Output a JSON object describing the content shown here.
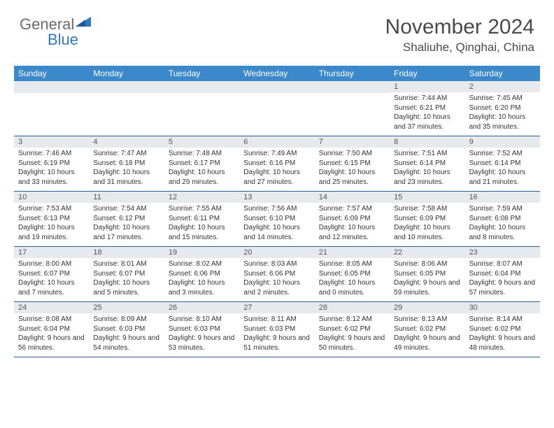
{
  "logo": {
    "general": "General",
    "blue": "Blue"
  },
  "title": "November 2024",
  "location": "Shaliuhe, Qinghai, China",
  "colors": {
    "header_bg": "#3b89ca",
    "daynum_bg": "#e7eaec",
    "border": "#2f5f8f",
    "logo_gray": "#6b6b6b",
    "logo_blue": "#2f78c2"
  },
  "day_names": [
    "Sunday",
    "Monday",
    "Tuesday",
    "Wednesday",
    "Thursday",
    "Friday",
    "Saturday"
  ],
  "weeks": [
    [
      {
        "n": "",
        "lines": []
      },
      {
        "n": "",
        "lines": []
      },
      {
        "n": "",
        "lines": []
      },
      {
        "n": "",
        "lines": []
      },
      {
        "n": "",
        "lines": []
      },
      {
        "n": "1",
        "lines": [
          "Sunrise: 7:44 AM",
          "Sunset: 6:21 PM",
          "Daylight: 10 hours and 37 minutes."
        ]
      },
      {
        "n": "2",
        "lines": [
          "Sunrise: 7:45 AM",
          "Sunset: 6:20 PM",
          "Daylight: 10 hours and 35 minutes."
        ]
      }
    ],
    [
      {
        "n": "3",
        "lines": [
          "Sunrise: 7:46 AM",
          "Sunset: 6:19 PM",
          "Daylight: 10 hours and 33 minutes."
        ]
      },
      {
        "n": "4",
        "lines": [
          "Sunrise: 7:47 AM",
          "Sunset: 6:18 PM",
          "Daylight: 10 hours and 31 minutes."
        ]
      },
      {
        "n": "5",
        "lines": [
          "Sunrise: 7:48 AM",
          "Sunset: 6:17 PM",
          "Daylight: 10 hours and 29 minutes."
        ]
      },
      {
        "n": "6",
        "lines": [
          "Sunrise: 7:49 AM",
          "Sunset: 6:16 PM",
          "Daylight: 10 hours and 27 minutes."
        ]
      },
      {
        "n": "7",
        "lines": [
          "Sunrise: 7:50 AM",
          "Sunset: 6:15 PM",
          "Daylight: 10 hours and 25 minutes."
        ]
      },
      {
        "n": "8",
        "lines": [
          "Sunrise: 7:51 AM",
          "Sunset: 6:14 PM",
          "Daylight: 10 hours and 23 minutes."
        ]
      },
      {
        "n": "9",
        "lines": [
          "Sunrise: 7:52 AM",
          "Sunset: 6:14 PM",
          "Daylight: 10 hours and 21 minutes."
        ]
      }
    ],
    [
      {
        "n": "10",
        "lines": [
          "Sunrise: 7:53 AM",
          "Sunset: 6:13 PM",
          "Daylight: 10 hours and 19 minutes."
        ]
      },
      {
        "n": "11",
        "lines": [
          "Sunrise: 7:54 AM",
          "Sunset: 6:12 PM",
          "Daylight: 10 hours and 17 minutes."
        ]
      },
      {
        "n": "12",
        "lines": [
          "Sunrise: 7:55 AM",
          "Sunset: 6:11 PM",
          "Daylight: 10 hours and 15 minutes."
        ]
      },
      {
        "n": "13",
        "lines": [
          "Sunrise: 7:56 AM",
          "Sunset: 6:10 PM",
          "Daylight: 10 hours and 14 minutes."
        ]
      },
      {
        "n": "14",
        "lines": [
          "Sunrise: 7:57 AM",
          "Sunset: 6:09 PM",
          "Daylight: 10 hours and 12 minutes."
        ]
      },
      {
        "n": "15",
        "lines": [
          "Sunrise: 7:58 AM",
          "Sunset: 6:09 PM",
          "Daylight: 10 hours and 10 minutes."
        ]
      },
      {
        "n": "16",
        "lines": [
          "Sunrise: 7:59 AM",
          "Sunset: 6:08 PM",
          "Daylight: 10 hours and 8 minutes."
        ]
      }
    ],
    [
      {
        "n": "17",
        "lines": [
          "Sunrise: 8:00 AM",
          "Sunset: 6:07 PM",
          "Daylight: 10 hours and 7 minutes."
        ]
      },
      {
        "n": "18",
        "lines": [
          "Sunrise: 8:01 AM",
          "Sunset: 6:07 PM",
          "Daylight: 10 hours and 5 minutes."
        ]
      },
      {
        "n": "19",
        "lines": [
          "Sunrise: 8:02 AM",
          "Sunset: 6:06 PM",
          "Daylight: 10 hours and 3 minutes."
        ]
      },
      {
        "n": "20",
        "lines": [
          "Sunrise: 8:03 AM",
          "Sunset: 6:06 PM",
          "Daylight: 10 hours and 2 minutes."
        ]
      },
      {
        "n": "21",
        "lines": [
          "Sunrise: 8:05 AM",
          "Sunset: 6:05 PM",
          "Daylight: 10 hours and 0 minutes."
        ]
      },
      {
        "n": "22",
        "lines": [
          "Sunrise: 8:06 AM",
          "Sunset: 6:05 PM",
          "Daylight: 9 hours and 59 minutes."
        ]
      },
      {
        "n": "23",
        "lines": [
          "Sunrise: 8:07 AM",
          "Sunset: 6:04 PM",
          "Daylight: 9 hours and 57 minutes."
        ]
      }
    ],
    [
      {
        "n": "24",
        "lines": [
          "Sunrise: 8:08 AM",
          "Sunset: 6:04 PM",
          "Daylight: 9 hours and 56 minutes."
        ]
      },
      {
        "n": "25",
        "lines": [
          "Sunrise: 8:09 AM",
          "Sunset: 6:03 PM",
          "Daylight: 9 hours and 54 minutes."
        ]
      },
      {
        "n": "26",
        "lines": [
          "Sunrise: 8:10 AM",
          "Sunset: 6:03 PM",
          "Daylight: 9 hours and 53 minutes."
        ]
      },
      {
        "n": "27",
        "lines": [
          "Sunrise: 8:11 AM",
          "Sunset: 6:03 PM",
          "Daylight: 9 hours and 51 minutes."
        ]
      },
      {
        "n": "28",
        "lines": [
          "Sunrise: 8:12 AM",
          "Sunset: 6:02 PM",
          "Daylight: 9 hours and 50 minutes."
        ]
      },
      {
        "n": "29",
        "lines": [
          "Sunrise: 8:13 AM",
          "Sunset: 6:02 PM",
          "Daylight: 9 hours and 49 minutes."
        ]
      },
      {
        "n": "30",
        "lines": [
          "Sunrise: 8:14 AM",
          "Sunset: 6:02 PM",
          "Daylight: 9 hours and 48 minutes."
        ]
      }
    ]
  ]
}
